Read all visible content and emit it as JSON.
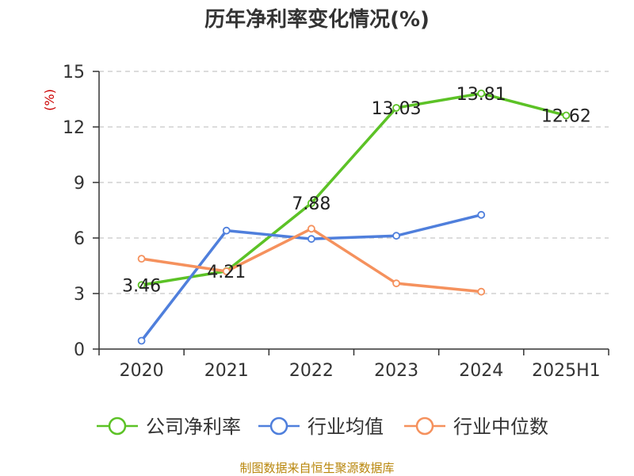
{
  "chart_data": {
    "type": "line",
    "title": "历年净利率变化情况(%)",
    "ylabel": "(%)",
    "categories": [
      "2020",
      "2021",
      "2022",
      "2023",
      "2024",
      "2025H1"
    ],
    "ylim": [
      0,
      15
    ],
    "yticks": [
      "0",
      "3",
      "6",
      "9",
      "12",
      "15"
    ],
    "grid": true,
    "legend_position": "bottom",
    "series": [
      {
        "name": "公司净利率",
        "color": "#5cc226",
        "values": [
          3.46,
          4.21,
          7.88,
          13.03,
          13.81,
          12.62
        ],
        "labels": [
          "3.46",
          "4.21",
          "7.88",
          "13.03",
          "13.81",
          "12.62"
        ]
      },
      {
        "name": "行业均值",
        "color": "#4f7fdc",
        "values": [
          0.45,
          6.4,
          5.95,
          6.12,
          7.25,
          null
        ]
      },
      {
        "name": "行业中位数",
        "color": "#f5915d",
        "values": [
          4.88,
          4.2,
          6.5,
          3.55,
          3.1,
          null
        ]
      }
    ],
    "source": "制图数据来自恒生聚源数据库"
  }
}
